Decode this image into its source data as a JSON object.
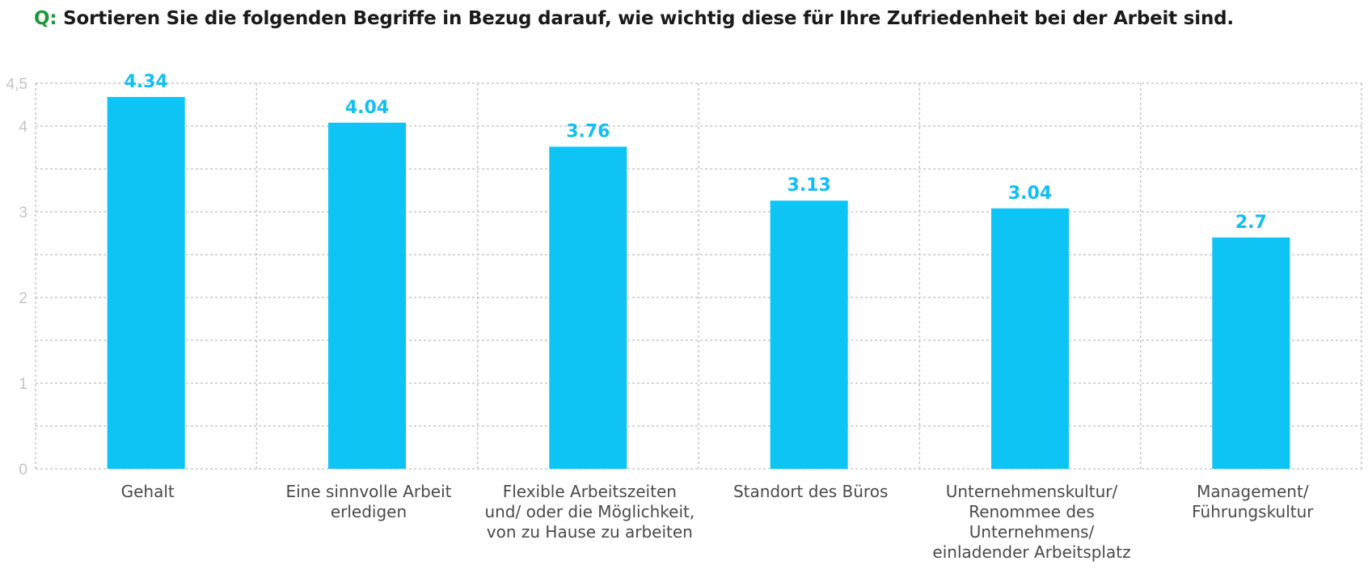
{
  "header": {
    "prefix": "Q:",
    "question": "Sortieren Sie die folgenden Begriffe in Bezug darauf, wie wichtig diese für Ihre Zufriedenheit bei der Arbeit sind."
  },
  "chart_data": {
    "type": "bar",
    "categories": [
      [
        "Gehalt"
      ],
      [
        "Eine sinnvolle Arbeit",
        "erledigen"
      ],
      [
        "Flexible Arbeitszeiten",
        "und/ oder die Möglichkeit,",
        "von zu Hause zu arbeiten"
      ],
      [
        "Standort des Büros"
      ],
      [
        "Unternehmenskultur/",
        "Renommee des",
        "Unternehmens/",
        "einladender Arbeitsplatz"
      ],
      [
        "Management/",
        "Führungskultur"
      ]
    ],
    "values": [
      4.34,
      4.04,
      3.76,
      3.13,
      3.04,
      2.7
    ],
    "value_labels": [
      "4.34",
      "4.04",
      "3.76",
      "3.13",
      "3.04",
      "2.7"
    ],
    "ylim": [
      0,
      4.5
    ],
    "yticks": [
      {
        "value": 0,
        "label": "0"
      },
      {
        "value": 1,
        "label": "1"
      },
      {
        "value": 2,
        "label": "2"
      },
      {
        "value": 3,
        "label": "3"
      },
      {
        "value": 4,
        "label": "4"
      },
      {
        "value": 4.5,
        "label": "4,5"
      }
    ],
    "grid": true,
    "colors": {
      "bar": "#0ec4f4",
      "value_label": "#12bff2",
      "grid": "#c8c8c8",
      "prefix": "#1a9a3a"
    }
  }
}
